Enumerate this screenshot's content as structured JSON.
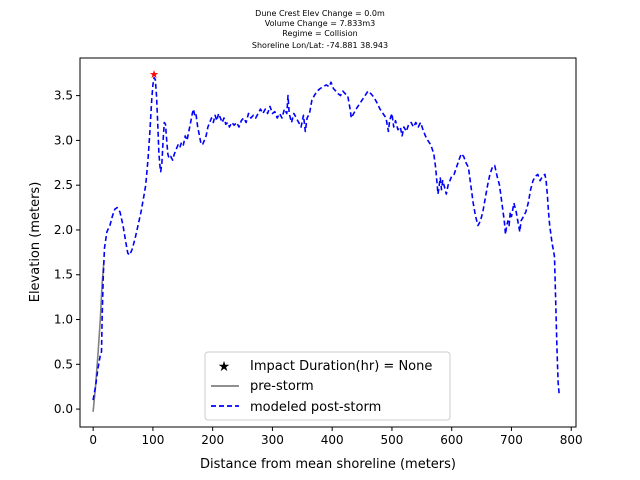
{
  "chart_data": {
    "type": "line",
    "title_lines": [
      "Dune Crest Elev Change = 0.0m",
      "Volume Change = 7.833m3",
      "Regime = Collision",
      "Shoreline Lon/Lat: -74.881 38.943"
    ],
    "xlabel": "Distance from mean shoreline (meters)",
    "ylabel": "Elevation (meters)",
    "xlim": [
      -22,
      808
    ],
    "ylim": [
      -0.2,
      3.92
    ],
    "xticks": [
      0,
      100,
      200,
      300,
      400,
      500,
      600,
      700,
      800
    ],
    "yticks": [
      0.0,
      0.5,
      1.0,
      1.5,
      2.0,
      2.5,
      3.0,
      3.5
    ],
    "ytick_labels": [
      "0.0",
      "0.5",
      "1.0",
      "1.5",
      "2.0",
      "2.5",
      "3.0",
      "3.5"
    ],
    "legend_position": "lower center",
    "colors": {
      "pre_storm": "#808080",
      "post_storm": "#0000ff",
      "marker": "#ff0000"
    },
    "marker": {
      "label": "Impact Duration(hr) = None",
      "x": 102,
      "y": 3.74
    },
    "series": [
      {
        "name": "pre-storm",
        "style": "solid",
        "points": [
          [
            0,
            -0.03
          ],
          [
            4,
            0.25
          ],
          [
            8,
            0.6
          ],
          [
            12,
            1.0
          ],
          [
            15,
            1.4
          ],
          [
            18,
            1.65
          ]
        ]
      },
      {
        "name": "modeled post-storm",
        "style": "dashed",
        "points": [
          [
            0,
            0.1
          ],
          [
            4,
            0.25
          ],
          [
            8,
            0.45
          ],
          [
            12,
            0.6
          ],
          [
            14,
            0.64
          ],
          [
            15,
            1.0
          ],
          [
            17,
            1.5
          ],
          [
            19,
            1.8
          ],
          [
            23,
            1.98
          ],
          [
            28,
            2.05
          ],
          [
            32,
            2.15
          ],
          [
            36,
            2.23
          ],
          [
            40,
            2.25
          ],
          [
            45,
            2.2
          ],
          [
            50,
            2.05
          ],
          [
            55,
            1.85
          ],
          [
            58,
            1.74
          ],
          [
            61,
            1.72
          ],
          [
            65,
            1.78
          ],
          [
            70,
            1.9
          ],
          [
            75,
            2.05
          ],
          [
            80,
            2.2
          ],
          [
            85,
            2.38
          ],
          [
            88,
            2.5
          ],
          [
            92,
            2.8
          ],
          [
            95,
            3.1
          ],
          [
            98,
            3.45
          ],
          [
            100,
            3.62
          ],
          [
            102,
            3.7
          ],
          [
            104,
            3.68
          ],
          [
            106,
            3.5
          ],
          [
            108,
            3.2
          ],
          [
            110,
            2.85
          ],
          [
            112,
            2.7
          ],
          [
            113,
            2.65
          ],
          [
            115,
            2.75
          ],
          [
            117,
            3.0
          ],
          [
            119,
            3.2
          ],
          [
            121,
            3.18
          ],
          [
            123,
            3.0
          ],
          [
            125,
            2.85
          ],
          [
            127,
            2.8
          ],
          [
            130,
            2.82
          ],
          [
            133,
            2.78
          ],
          [
            136,
            2.85
          ],
          [
            139,
            2.9
          ],
          [
            142,
            2.95
          ],
          [
            145,
            2.92
          ],
          [
            148,
            2.98
          ],
          [
            151,
            2.95
          ],
          [
            154,
            3.05
          ],
          [
            157,
            3.0
          ],
          [
            160,
            3.1
          ],
          [
            163,
            3.2
          ],
          [
            166,
            3.3
          ],
          [
            168,
            3.35
          ],
          [
            170,
            3.28
          ],
          [
            172,
            3.3
          ],
          [
            175,
            3.15
          ],
          [
            178,
            3.05
          ],
          [
            180,
            2.98
          ],
          [
            183,
            2.95
          ],
          [
            186,
            3.0
          ],
          [
            189,
            3.05
          ],
          [
            192,
            3.15
          ],
          [
            195,
            3.2
          ],
          [
            198,
            3.25
          ],
          [
            201,
            3.2
          ],
          [
            204,
            3.28
          ],
          [
            207,
            3.22
          ],
          [
            210,
            3.3
          ],
          [
            213,
            3.25
          ],
          [
            216,
            3.2
          ],
          [
            219,
            3.25
          ],
          [
            222,
            3.18
          ],
          [
            225,
            3.2
          ],
          [
            228,
            3.15
          ],
          [
            232,
            3.2
          ],
          [
            236,
            3.17
          ],
          [
            240,
            3.2
          ],
          [
            244,
            3.15
          ],
          [
            248,
            3.22
          ],
          [
            252,
            3.25
          ],
          [
            256,
            3.2
          ],
          [
            260,
            3.3
          ],
          [
            264,
            3.25
          ],
          [
            268,
            3.28
          ],
          [
            272,
            3.25
          ],
          [
            276,
            3.3
          ],
          [
            280,
            3.35
          ],
          [
            284,
            3.3
          ],
          [
            288,
            3.35
          ],
          [
            292,
            3.3
          ],
          [
            296,
            3.38
          ],
          [
            300,
            3.3
          ],
          [
            304,
            3.32
          ],
          [
            308,
            3.25
          ],
          [
            312,
            3.3
          ],
          [
            316,
            3.25
          ],
          [
            320,
            3.35
          ],
          [
            324,
            3.3
          ],
          [
            326,
            3.5
          ],
          [
            328,
            3.3
          ],
          [
            332,
            3.2
          ],
          [
            336,
            3.3
          ],
          [
            340,
            3.25
          ],
          [
            344,
            3.2
          ],
          [
            348,
            3.15
          ],
          [
            350,
            3.22
          ],
          [
            352,
            3.28
          ],
          [
            355,
            3.1
          ],
          [
            358,
            3.25
          ],
          [
            362,
            3.3
          ],
          [
            366,
            3.45
          ],
          [
            370,
            3.5
          ],
          [
            375,
            3.55
          ],
          [
            380,
            3.58
          ],
          [
            385,
            3.6
          ],
          [
            390,
            3.62
          ],
          [
            395,
            3.6
          ],
          [
            398,
            3.65
          ],
          [
            402,
            3.58
          ],
          [
            406,
            3.55
          ],
          [
            410,
            3.52
          ],
          [
            414,
            3.5
          ],
          [
            418,
            3.55
          ],
          [
            422,
            3.52
          ],
          [
            426,
            3.5
          ],
          [
            430,
            3.35
          ],
          [
            432,
            3.25
          ],
          [
            436,
            3.3
          ],
          [
            440,
            3.35
          ],
          [
            445,
            3.4
          ],
          [
            450,
            3.45
          ],
          [
            455,
            3.5
          ],
          [
            460,
            3.55
          ],
          [
            465,
            3.52
          ],
          [
            470,
            3.48
          ],
          [
            475,
            3.42
          ],
          [
            480,
            3.35
          ],
          [
            485,
            3.3
          ],
          [
            490,
            3.25
          ],
          [
            494,
            3.1
          ],
          [
            496,
            3.22
          ],
          [
            500,
            3.3
          ],
          [
            503,
            3.15
          ],
          [
            506,
            3.22
          ],
          [
            510,
            3.12
          ],
          [
            514,
            3.15
          ],
          [
            517,
            3.05
          ],
          [
            520,
            3.15
          ],
          [
            524,
            3.1
          ],
          [
            528,
            3.18
          ],
          [
            532,
            3.2
          ],
          [
            536,
            3.15
          ],
          [
            540,
            3.2
          ],
          [
            544,
            3.15
          ],
          [
            548,
            3.2
          ],
          [
            552,
            3.12
          ],
          [
            556,
            3.05
          ],
          [
            560,
            3.0
          ],
          [
            565,
            2.95
          ],
          [
            570,
            2.85
          ],
          [
            573,
            2.7
          ],
          [
            575,
            2.55
          ],
          [
            577,
            2.4
          ],
          [
            579,
            2.5
          ],
          [
            581,
            2.58
          ],
          [
            583,
            2.45
          ],
          [
            585,
            2.55
          ],
          [
            588,
            2.48
          ],
          [
            591,
            2.4
          ],
          [
            594,
            2.5
          ],
          [
            597,
            2.55
          ],
          [
            600,
            2.6
          ],
          [
            604,
            2.62
          ],
          [
            608,
            2.7
          ],
          [
            612,
            2.78
          ],
          [
            616,
            2.85
          ],
          [
            620,
            2.82
          ],
          [
            624,
            2.75
          ],
          [
            628,
            2.7
          ],
          [
            632,
            2.5
          ],
          [
            636,
            2.3
          ],
          [
            640,
            2.15
          ],
          [
            644,
            2.05
          ],
          [
            648,
            2.1
          ],
          [
            652,
            2.2
          ],
          [
            656,
            2.35
          ],
          [
            660,
            2.5
          ],
          [
            664,
            2.62
          ],
          [
            668,
            2.7
          ],
          [
            672,
            2.72
          ],
          [
            676,
            2.6
          ],
          [
            680,
            2.5
          ],
          [
            684,
            2.3
          ],
          [
            688,
            2.1
          ],
          [
            690,
            1.95
          ],
          [
            692,
            2.05
          ],
          [
            694,
            2.1
          ],
          [
            696,
            2.05
          ],
          [
            698,
            2.2
          ],
          [
            700,
            2.15
          ],
          [
            704,
            2.3
          ],
          [
            708,
            2.2
          ],
          [
            712,
            2.05
          ],
          [
            714,
            1.98
          ],
          [
            716,
            2.1
          ],
          [
            720,
            2.15
          ],
          [
            724,
            2.2
          ],
          [
            728,
            2.3
          ],
          [
            732,
            2.45
          ],
          [
            736,
            2.55
          ],
          [
            740,
            2.6
          ],
          [
            744,
            2.62
          ],
          [
            748,
            2.55
          ],
          [
            752,
            2.6
          ],
          [
            756,
            2.62
          ],
          [
            758,
            2.55
          ],
          [
            760,
            2.4
          ],
          [
            762,
            2.2
          ],
          [
            764,
            2.05
          ],
          [
            766,
            1.95
          ],
          [
            768,
            1.85
          ],
          [
            770,
            1.78
          ],
          [
            772,
            1.7
          ],
          [
            774,
            1.2
          ],
          [
            776,
            0.7
          ],
          [
            778,
            0.3
          ],
          [
            780,
            0.15
          ]
        ]
      }
    ]
  }
}
